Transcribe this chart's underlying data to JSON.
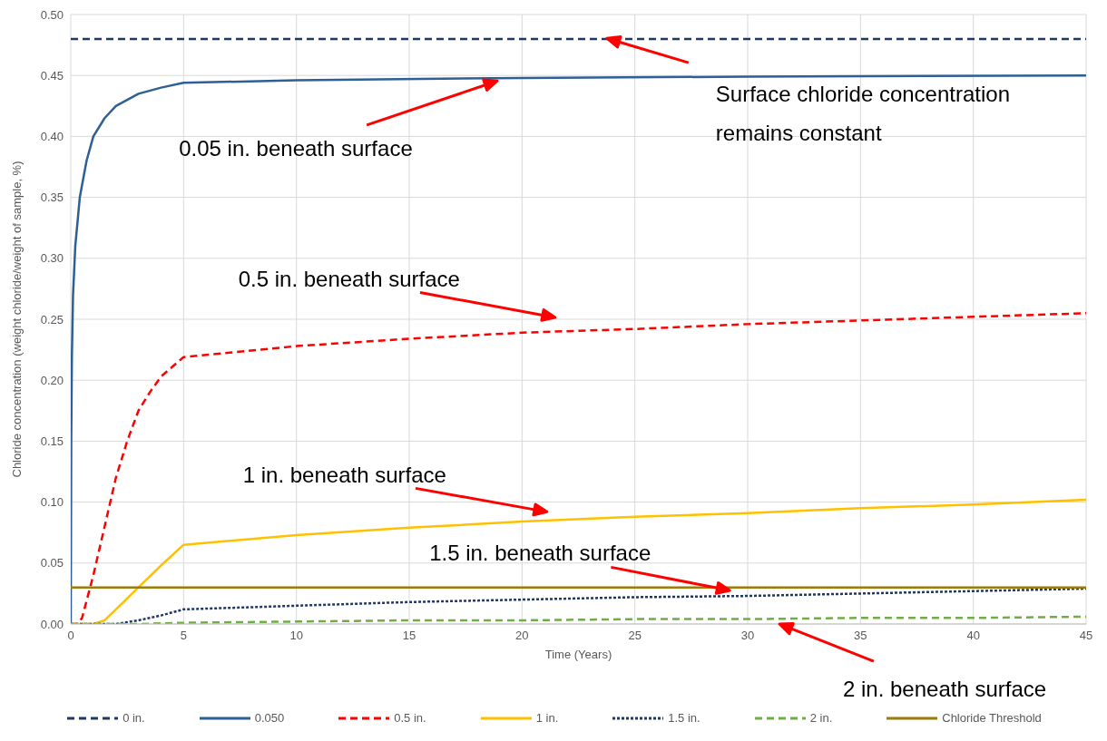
{
  "chart_data": {
    "type": "line",
    "xlabel": "Time (Years)",
    "ylabel": "Chloride concentration (weight chloride/weight of sample, %)",
    "xlim": [
      0,
      45
    ],
    "xticks": [
      0,
      5,
      10,
      15,
      20,
      25,
      30,
      35,
      40,
      45
    ],
    "ylim": [
      0,
      0.5
    ],
    "yticks": [
      {
        "value": 0,
        "label": "0.00"
      },
      {
        "value": 0.05,
        "label": "0.05"
      },
      {
        "value": 0.1,
        "label": "0.10"
      },
      {
        "value": 0.15,
        "label": "0.15"
      },
      {
        "value": 0.2,
        "label": "0.20"
      },
      {
        "value": 0.25,
        "label": "0.25"
      },
      {
        "value": 0.3,
        "label": "0.30"
      },
      {
        "value": 0.35,
        "label": "0.35"
      },
      {
        "value": 0.4,
        "label": "0.40"
      },
      {
        "value": 0.45,
        "label": "0.45"
      },
      {
        "value": 0.5,
        "label": "0.50"
      }
    ],
    "grid": true,
    "legend": "bottom",
    "marker": "none",
    "series": [
      {
        "name": "0 in.",
        "color": "#1f3864",
        "line_style": "dashed",
        "x": [
          0,
          45
        ],
        "values": [
          0.48,
          0.48
        ]
      },
      {
        "name": "0.050",
        "color": "#2e5f96",
        "line_style": "solid",
        "x": [
          0,
          0.02,
          0.05,
          0.1,
          0.2,
          0.4,
          0.7,
          1,
          1.5,
          2,
          3,
          4,
          5,
          10,
          20,
          30,
          45
        ],
        "values": [
          0,
          0.15,
          0.22,
          0.27,
          0.31,
          0.35,
          0.38,
          0.4,
          0.415,
          0.425,
          0.435,
          0.44,
          0.444,
          0.446,
          0.448,
          0.449,
          0.45
        ]
      },
      {
        "name": "0.5 in.",
        "color": "#ff0000",
        "line_style": "dashed",
        "x": [
          0,
          0.3,
          0.5,
          1,
          1.5,
          2,
          2.5,
          3,
          3.5,
          4,
          5,
          10,
          15,
          20,
          25,
          30,
          35,
          40,
          45
        ],
        "values": [
          0,
          0,
          0.005,
          0.04,
          0.08,
          0.12,
          0.15,
          0.175,
          0.19,
          0.203,
          0.219,
          0.228,
          0.234,
          0.239,
          0.242,
          0.246,
          0.249,
          0.252,
          0.255
        ]
      },
      {
        "name": "1 in.",
        "color": "#ffc000",
        "line_style": "solid",
        "x": [
          0,
          1,
          1.5,
          2,
          3,
          4,
          5,
          10,
          15,
          20,
          25,
          30,
          35,
          40,
          45
        ],
        "values": [
          0,
          0,
          0.003,
          0.012,
          0.03,
          0.048,
          0.065,
          0.073,
          0.079,
          0.084,
          0.088,
          0.091,
          0.095,
          0.098,
          0.102
        ]
      },
      {
        "name": "1.5 in.",
        "color": "#1f3864",
        "line_style": "dotted",
        "x": [
          0,
          2,
          3,
          4,
          5,
          10,
          15,
          20,
          25,
          30,
          35,
          40,
          45
        ],
        "values": [
          0,
          0,
          0.003,
          0.007,
          0.012,
          0.015,
          0.018,
          0.02,
          0.022,
          0.023,
          0.025,
          0.027,
          0.029
        ]
      },
      {
        "name": "2 in.",
        "color": "#70ad47",
        "line_style": "dashed",
        "x": [
          0,
          3,
          5,
          10,
          15,
          20,
          25,
          30,
          35,
          40,
          45
        ],
        "values": [
          0,
          0,
          0.001,
          0.002,
          0.003,
          0.003,
          0.004,
          0.004,
          0.005,
          0.005,
          0.006
        ]
      },
      {
        "name": "Chloride Threshold",
        "color": "#9c7b06",
        "line_style": "solid",
        "x": [
          0,
          45
        ],
        "values": [
          0.03,
          0.03
        ]
      }
    ],
    "annotations": [
      "0.05 in. beneath surface",
      "Surface chloride concentration remains constant",
      "0.5 in. beneath surface",
      "1 in. beneath surface",
      "1.5 in. beneath surface",
      "2 in. beneath surface"
    ]
  }
}
